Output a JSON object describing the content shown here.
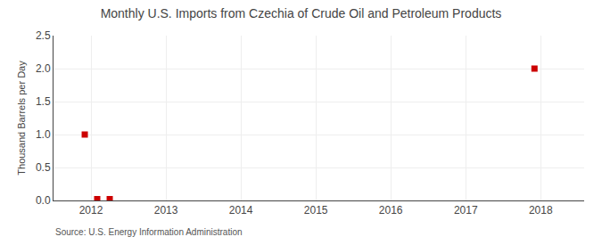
{
  "chart_data": {
    "type": "scatter",
    "title": "Monthly U.S. Imports from Czechia of Crude Oil and Petroleum Products",
    "ylabel": "Thousand Barrels per Day",
    "annotations": [
      "Source: U.S. Energy Information Administration"
    ],
    "x": [
      2011.917,
      2012.083,
      2012.25,
      2017.917
    ],
    "values": [
      1.0,
      0.02,
      0.02,
      2.0
    ],
    "color": "#cc0000",
    "marker": "square",
    "xlim": [
      2011.5,
      2018.58
    ],
    "ylim": [
      0.0,
      2.5
    ],
    "xticks": [
      2012,
      2013,
      2014,
      2015,
      2016,
      2017,
      2018
    ],
    "yticks": [
      {
        "value": 0.0,
        "label": "0.0"
      },
      0.5,
      {
        "value": 1.0,
        "label": "1.0"
      },
      1.5,
      {
        "value": 2.0,
        "label": "2.0"
      },
      2.5
    ],
    "grid": true
  }
}
